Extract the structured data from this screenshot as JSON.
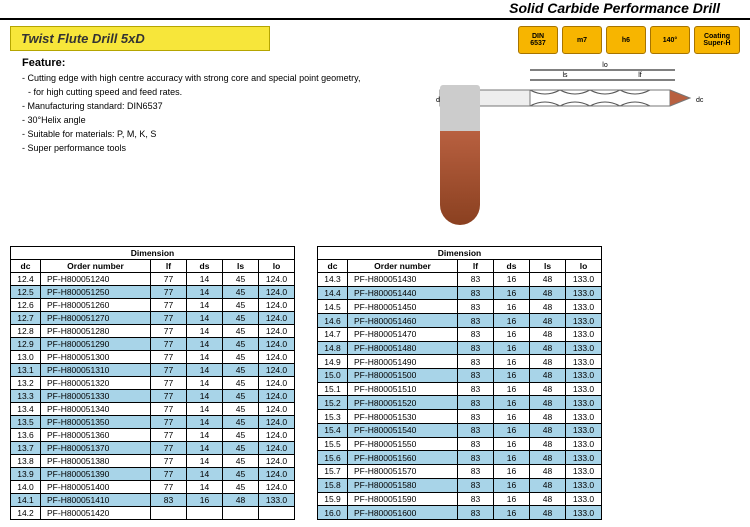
{
  "header": {
    "title": "Solid Carbide Performance Drill"
  },
  "product": {
    "title": "Twist Flute Drill 5xD"
  },
  "feature": {
    "heading": "Feature:",
    "items": [
      "Cutting edge with high centre accuracy with strong core and special point geometry,",
      "for high cutting speed and feed rates.",
      "Manufacturing standard: DIN6537",
      "30°Helix angle",
      "Suitable for materials: P, M, K, S",
      "Super performance tools"
    ]
  },
  "badges": [
    {
      "line1": "DIN",
      "line2": "6537"
    },
    {
      "line1": "m7",
      "line2": ""
    },
    {
      "line1": "h6",
      "line2": ""
    },
    {
      "line1": "140°",
      "line2": ""
    },
    {
      "line1": "Coating",
      "line2": "Super-H"
    }
  ],
  "diagram": {
    "labels": [
      "ls",
      "lo",
      "lf",
      "ds",
      "dc"
    ]
  },
  "colors": {
    "badge_bg": "#f7b500",
    "highlight_row": "#a8d4e8",
    "title_bg": "#f7e63a"
  },
  "table": {
    "group_header": "Dimension",
    "columns": [
      "dc",
      "Order number",
      "lf",
      "ds",
      "ls",
      "lo"
    ],
    "left": [
      {
        "dc": "12.4",
        "order": "PF-H800051240",
        "lf": "77",
        "ds": "14",
        "ls": "45",
        "lo": "124.0",
        "hl": false
      },
      {
        "dc": "12.5",
        "order": "PF-H800051250",
        "lf": "77",
        "ds": "14",
        "ls": "45",
        "lo": "124.0",
        "hl": true
      },
      {
        "dc": "12.6",
        "order": "PF-H800051260",
        "lf": "77",
        "ds": "14",
        "ls": "45",
        "lo": "124.0",
        "hl": false
      },
      {
        "dc": "12.7",
        "order": "PF-H800051270",
        "lf": "77",
        "ds": "14",
        "ls": "45",
        "lo": "124.0",
        "hl": true
      },
      {
        "dc": "12.8",
        "order": "PF-H800051280",
        "lf": "77",
        "ds": "14",
        "ls": "45",
        "lo": "124.0",
        "hl": false
      },
      {
        "dc": "12.9",
        "order": "PF-H800051290",
        "lf": "77",
        "ds": "14",
        "ls": "45",
        "lo": "124.0",
        "hl": true
      },
      {
        "dc": "13.0",
        "order": "PF-H800051300",
        "lf": "77",
        "ds": "14",
        "ls": "45",
        "lo": "124.0",
        "hl": false
      },
      {
        "dc": "13.1",
        "order": "PF-H800051310",
        "lf": "77",
        "ds": "14",
        "ls": "45",
        "lo": "124.0",
        "hl": true
      },
      {
        "dc": "13.2",
        "order": "PF-H800051320",
        "lf": "77",
        "ds": "14",
        "ls": "45",
        "lo": "124.0",
        "hl": false
      },
      {
        "dc": "13.3",
        "order": "PF-H800051330",
        "lf": "77",
        "ds": "14",
        "ls": "45",
        "lo": "124.0",
        "hl": true
      },
      {
        "dc": "13.4",
        "order": "PF-H800051340",
        "lf": "77",
        "ds": "14",
        "ls": "45",
        "lo": "124.0",
        "hl": false
      },
      {
        "dc": "13.5",
        "order": "PF-H800051350",
        "lf": "77",
        "ds": "14",
        "ls": "45",
        "lo": "124.0",
        "hl": true
      },
      {
        "dc": "13.6",
        "order": "PF-H800051360",
        "lf": "77",
        "ds": "14",
        "ls": "45",
        "lo": "124.0",
        "hl": false
      },
      {
        "dc": "13.7",
        "order": "PF-H800051370",
        "lf": "77",
        "ds": "14",
        "ls": "45",
        "lo": "124.0",
        "hl": true
      },
      {
        "dc": "13.8",
        "order": "PF-H800051380",
        "lf": "77",
        "ds": "14",
        "ls": "45",
        "lo": "124.0",
        "hl": false
      },
      {
        "dc": "13.9",
        "order": "PF-H800051390",
        "lf": "77",
        "ds": "14",
        "ls": "45",
        "lo": "124.0",
        "hl": true
      },
      {
        "dc": "14.0",
        "order": "PF-H800051400",
        "lf": "77",
        "ds": "14",
        "ls": "45",
        "lo": "124.0",
        "hl": false
      },
      {
        "dc": "14.1",
        "order": "PF-H800051410",
        "lf": "83",
        "ds": "16",
        "ls": "48",
        "lo": "133.0",
        "hl": true
      },
      {
        "dc": "14.2",
        "order": "PF-H800051420",
        "lf": "",
        "ds": "",
        "ls": "",
        "lo": "",
        "hl": false
      }
    ],
    "right": [
      {
        "dc": "14.3",
        "order": "PF-H800051430",
        "lf": "83",
        "ds": "16",
        "ls": "48",
        "lo": "133.0",
        "hl": false
      },
      {
        "dc": "14.4",
        "order": "PF-H800051440",
        "lf": "83",
        "ds": "16",
        "ls": "48",
        "lo": "133.0",
        "hl": true
      },
      {
        "dc": "14.5",
        "order": "PF-H800051450",
        "lf": "83",
        "ds": "16",
        "ls": "48",
        "lo": "133.0",
        "hl": false
      },
      {
        "dc": "14.6",
        "order": "PF-H800051460",
        "lf": "83",
        "ds": "16",
        "ls": "48",
        "lo": "133.0",
        "hl": true
      },
      {
        "dc": "14.7",
        "order": "PF-H800051470",
        "lf": "83",
        "ds": "16",
        "ls": "48",
        "lo": "133.0",
        "hl": false
      },
      {
        "dc": "14.8",
        "order": "PF-H800051480",
        "lf": "83",
        "ds": "16",
        "ls": "48",
        "lo": "133.0",
        "hl": true
      },
      {
        "dc": "14.9",
        "order": "PF-H800051490",
        "lf": "83",
        "ds": "16",
        "ls": "48",
        "lo": "133.0",
        "hl": false
      },
      {
        "dc": "15.0",
        "order": "PF-H800051500",
        "lf": "83",
        "ds": "16",
        "ls": "48",
        "lo": "133.0",
        "hl": true
      },
      {
        "dc": "15.1",
        "order": "PF-H800051510",
        "lf": "83",
        "ds": "16",
        "ls": "48",
        "lo": "133.0",
        "hl": false
      },
      {
        "dc": "15.2",
        "order": "PF-H800051520",
        "lf": "83",
        "ds": "16",
        "ls": "48",
        "lo": "133.0",
        "hl": true
      },
      {
        "dc": "15.3",
        "order": "PF-H800051530",
        "lf": "83",
        "ds": "16",
        "ls": "48",
        "lo": "133.0",
        "hl": false
      },
      {
        "dc": "15.4",
        "order": "PF-H800051540",
        "lf": "83",
        "ds": "16",
        "ls": "48",
        "lo": "133.0",
        "hl": true
      },
      {
        "dc": "15.5",
        "order": "PF-H800051550",
        "lf": "83",
        "ds": "16",
        "ls": "48",
        "lo": "133.0",
        "hl": false
      },
      {
        "dc": "15.6",
        "order": "PF-H800051560",
        "lf": "83",
        "ds": "16",
        "ls": "48",
        "lo": "133.0",
        "hl": true
      },
      {
        "dc": "15.7",
        "order": "PF-H800051570",
        "lf": "83",
        "ds": "16",
        "ls": "48",
        "lo": "133.0",
        "hl": false
      },
      {
        "dc": "15.8",
        "order": "PF-H800051580",
        "lf": "83",
        "ds": "16",
        "ls": "48",
        "lo": "133.0",
        "hl": true
      },
      {
        "dc": "15.9",
        "order": "PF-H800051590",
        "lf": "83",
        "ds": "16",
        "ls": "48",
        "lo": "133.0",
        "hl": false
      },
      {
        "dc": "16.0",
        "order": "PF-H800051600",
        "lf": "83",
        "ds": "16",
        "ls": "48",
        "lo": "133.0",
        "hl": true
      }
    ]
  }
}
